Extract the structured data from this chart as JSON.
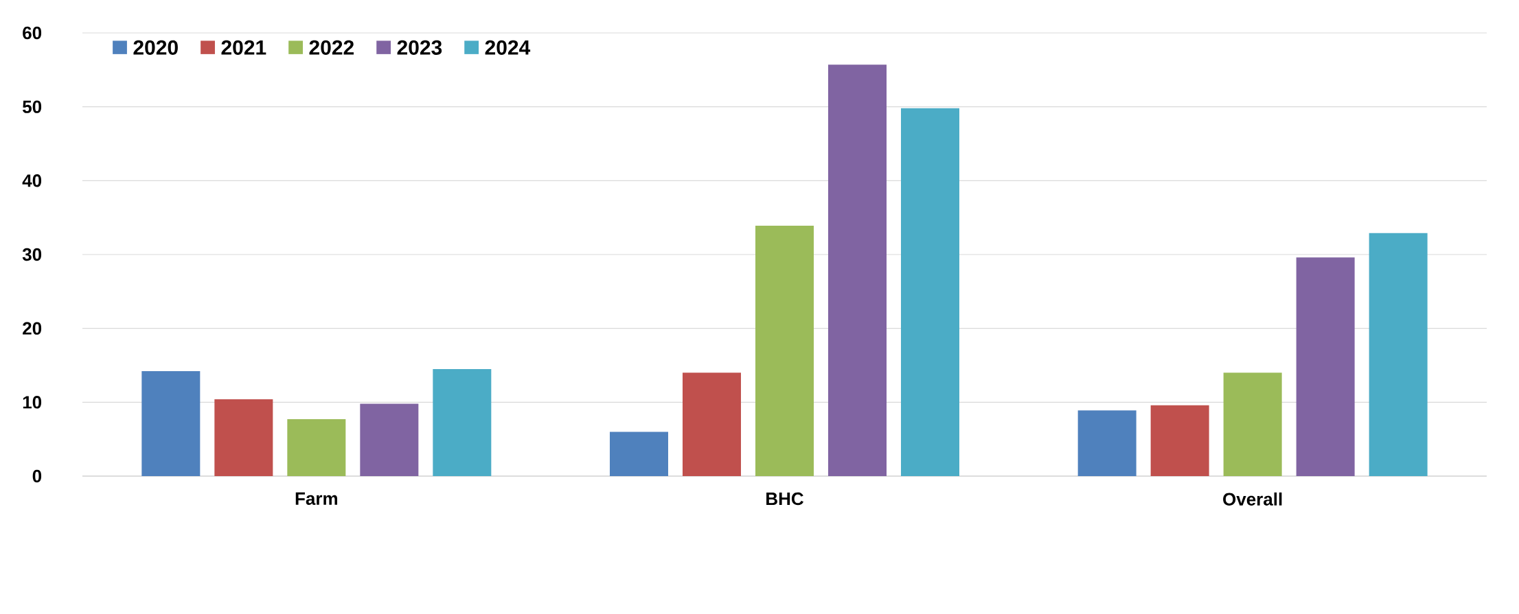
{
  "chart_data": {
    "type": "bar",
    "categories": [
      "Farm",
      "BHC",
      "Overall"
    ],
    "series": [
      {
        "name": "2020",
        "color": "#4f81bd",
        "values": [
          14.2,
          6.0,
          8.9
        ]
      },
      {
        "name": "2021",
        "color": "#c0504d",
        "values": [
          10.4,
          14.0,
          9.6
        ]
      },
      {
        "name": "2022",
        "color": "#9bbb59",
        "values": [
          7.7,
          33.9,
          14.0
        ]
      },
      {
        "name": "2023",
        "color": "#8064a2",
        "values": [
          9.8,
          55.7,
          29.6
        ]
      },
      {
        "name": "2024",
        "color": "#4bacc6",
        "values": [
          14.5,
          49.8,
          32.9
        ]
      }
    ],
    "ylim": [
      0,
      60
    ],
    "yticks": [
      0,
      10,
      20,
      30,
      40,
      50,
      60
    ],
    "grid": "y",
    "legend": "top left"
  }
}
